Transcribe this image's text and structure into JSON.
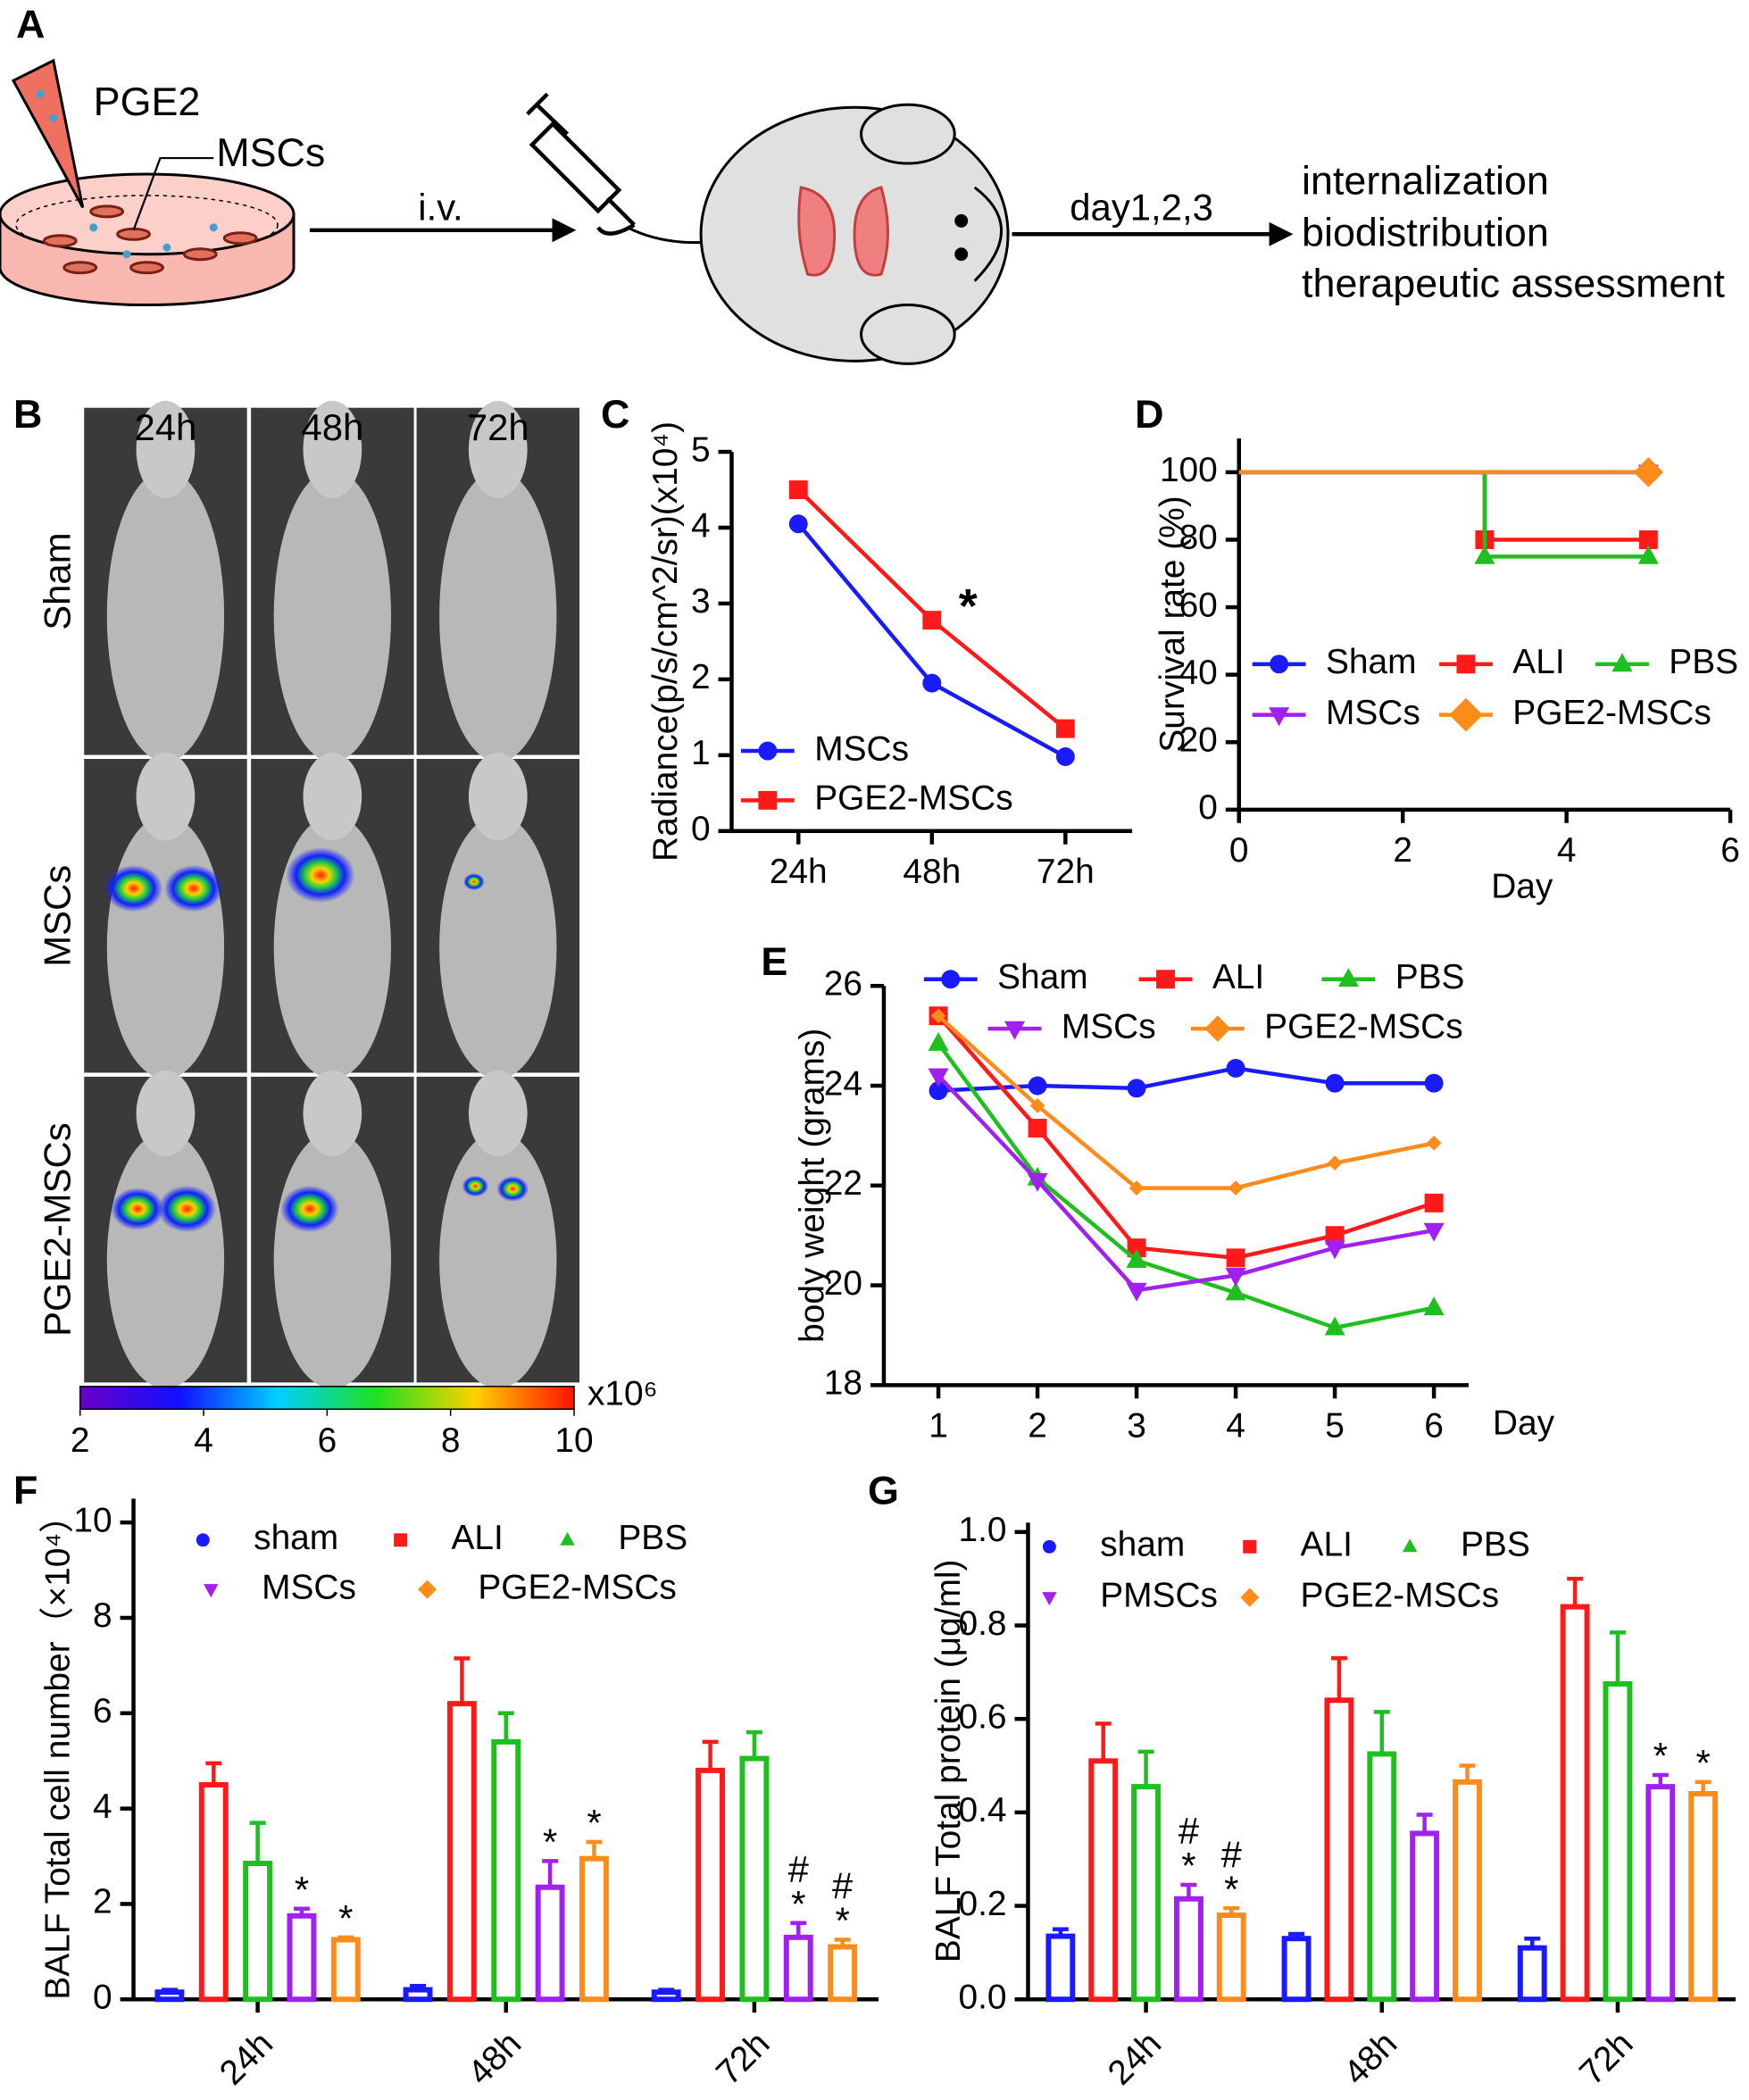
{
  "panel_a": {
    "label": "A",
    "pipette_label": "PGE2",
    "cells_label": "MSCs",
    "route": "i.v.",
    "timing": "day1,2,3",
    "outcomes": [
      "internalization",
      "biodistribution",
      "therapeutic assessment"
    ]
  },
  "panel_b": {
    "label": "B",
    "timepoints": [
      "24h",
      "48h",
      "72h"
    ],
    "groups": [
      "Sham",
      "MSCs",
      "PGE2-MSCs"
    ],
    "colorbar": {
      "lim": [
        2,
        10
      ],
      "ticks": [
        2,
        4,
        6,
        8,
        10
      ],
      "unit": "x10⁶"
    }
  },
  "chart_data": [
    {
      "type": "line",
      "panel": "C",
      "ylabel": "Radiance(p/s/cm^2/sr)(x10⁴)",
      "categories": [
        "24h",
        "48h",
        "72h"
      ],
      "series": [
        {
          "name": "MSCs",
          "color": "#1a1aff",
          "marker": "circle",
          "values": [
            4.05,
            1.95,
            0.98
          ]
        },
        {
          "name": "PGE2-MSCs",
          "color": "#ff1a1a",
          "marker": "square",
          "values": [
            4.5,
            2.78,
            1.35
          ]
        }
      ],
      "ylim": [
        0,
        5
      ],
      "yticks": [
        0,
        1,
        2,
        3,
        4,
        5
      ],
      "annotation": "*",
      "legend": "lower left"
    },
    {
      "type": "step",
      "panel": "D",
      "xlabel": "Day",
      "ylabel": "Survival rate (%)",
      "x": [
        0,
        3,
        5
      ],
      "series": [
        {
          "name": "Sham",
          "color": "#1a1aff",
          "marker": "circle",
          "values": [
            100,
            100,
            100
          ]
        },
        {
          "name": "ALI",
          "color": "#ff1a1a",
          "marker": "square",
          "values": [
            100,
            80,
            80
          ]
        },
        {
          "name": "PBS",
          "color": "#1fbf1f",
          "marker": "triangle",
          "values": [
            100,
            75,
            75
          ]
        },
        {
          "name": "MSCs",
          "color": "#a020f0",
          "marker": "triangle-down",
          "values": [
            100,
            100,
            100
          ]
        },
        {
          "name": "PGE2-MSCs",
          "color": "#ff8c1a",
          "marker": "diamond",
          "values": [
            100,
            100,
            100
          ]
        }
      ],
      "xlim": [
        0,
        6
      ],
      "xticks": [
        0,
        2,
        4,
        6
      ],
      "ylim": [
        0,
        110
      ],
      "yticks": [
        0,
        20,
        40,
        60,
        80,
        100
      ],
      "legend": "lower left"
    },
    {
      "type": "line",
      "panel": "E",
      "xlabel": "Day",
      "ylabel": "body weight (grams)",
      "x": [
        1,
        2,
        3,
        4,
        5,
        6
      ],
      "series": [
        {
          "name": "Sham",
          "color": "#1a1aff",
          "marker": "circle",
          "values": [
            23.9,
            24.0,
            23.95,
            24.35,
            24.05,
            24.05
          ]
        },
        {
          "name": "ALI",
          "color": "#ff1a1a",
          "marker": "square",
          "values": [
            25.4,
            23.15,
            20.75,
            20.55,
            21.0,
            21.65
          ]
        },
        {
          "name": "PBS",
          "color": "#1fbf1f",
          "marker": "triangle",
          "values": [
            24.85,
            22.15,
            20.5,
            19.85,
            19.15,
            19.55
          ]
        },
        {
          "name": "MSCs",
          "color": "#a020f0",
          "marker": "triangle-down",
          "values": [
            24.2,
            22.1,
            19.9,
            20.2,
            20.75,
            21.1
          ]
        },
        {
          "name": "PGE2-MSCs",
          "color": "#ff8c1a",
          "marker": "diamond",
          "values": [
            25.4,
            23.6,
            21.95,
            21.95,
            22.45,
            22.85
          ]
        }
      ],
      "xlim": [
        0.45,
        6.35
      ],
      "xticks": [
        1,
        2,
        3,
        4,
        5,
        6
      ],
      "ylim": [
        18,
        26
      ],
      "yticks": [
        18,
        20,
        22,
        24,
        26
      ],
      "legend": "top"
    },
    {
      "type": "bar",
      "panel": "F",
      "ylabel": "BALF Total cell number（×10⁴）",
      "categories": [
        "24h",
        "48h",
        "72h"
      ],
      "series": [
        {
          "name": "sham",
          "color": "#1a1aff",
          "marker": "circle",
          "values": [
            0.15,
            0.2,
            0.15
          ],
          "errors": [
            0.05,
            0.08,
            0.05
          ]
        },
        {
          "name": "ALI",
          "color": "#ff1a1a",
          "marker": "square",
          "values": [
            4.5,
            6.2,
            4.8
          ],
          "errors": [
            0.45,
            0.95,
            0.6
          ]
        },
        {
          "name": "PBS",
          "color": "#1fbf1f",
          "marker": "triangle",
          "values": [
            2.85,
            5.4,
            5.05
          ],
          "errors": [
            0.85,
            0.6,
            0.55
          ]
        },
        {
          "name": "MSCs",
          "color": "#a020f0",
          "marker": "triangle-down",
          "values": [
            1.75,
            2.35,
            1.3
          ],
          "errors": [
            0.15,
            0.55,
            0.3
          ],
          "significance": [
            [
              "*"
            ],
            [
              "*"
            ],
            [
              "#",
              "*"
            ]
          ]
        },
        {
          "name": "PGE2-MSCs",
          "color": "#ff8c1a",
          "marker": "diamond",
          "values": [
            1.25,
            2.95,
            1.1
          ],
          "errors": [
            0.05,
            0.35,
            0.15
          ],
          "significance": [
            [
              "*"
            ],
            [
              "*"
            ],
            [
              "#",
              "*"
            ]
          ]
        }
      ],
      "ylim": [
        0,
        10.5
      ],
      "yticks": [
        0,
        2,
        4,
        6,
        8,
        10
      ],
      "legend": "top"
    },
    {
      "type": "bar",
      "panel": "G",
      "ylabel": "BALF Total protein (μg/ml)",
      "categories": [
        "24h",
        "48h",
        "72h"
      ],
      "series": [
        {
          "name": "sham",
          "color": "#1a1aff",
          "marker": "circle",
          "values": [
            0.135,
            0.13,
            0.11
          ],
          "errors": [
            0.015,
            0.01,
            0.02
          ]
        },
        {
          "name": "ALI",
          "color": "#ff1a1a",
          "marker": "square",
          "values": [
            0.51,
            0.64,
            0.84
          ],
          "errors": [
            0.08,
            0.09,
            0.06
          ]
        },
        {
          "name": "PBS",
          "color": "#1fbf1f",
          "marker": "triangle",
          "values": [
            0.455,
            0.525,
            0.675
          ],
          "errors": [
            0.075,
            0.09,
            0.11
          ]
        },
        {
          "name": "PMSCs",
          "color": "#a020f0",
          "marker": "triangle-down",
          "values": [
            0.215,
            0.355,
            0.455
          ],
          "errors": [
            0.03,
            0.04,
            0.025
          ],
          "significance": [
            [
              "#",
              "*"
            ],
            null,
            [
              "*"
            ]
          ]
        },
        {
          "name": "PGE2-MSCs",
          "color": "#ff8c1a",
          "marker": "diamond",
          "values": [
            0.18,
            0.465,
            0.44
          ],
          "errors": [
            0.015,
            0.035,
            0.025
          ],
          "significance": [
            [
              "#",
              "*"
            ],
            null,
            [
              "*"
            ]
          ]
        }
      ],
      "ylim": [
        0,
        1.02
      ],
      "yticks": [
        {
          "value": 0,
          "label": "0.0"
        },
        0.2,
        0.4,
        0.6,
        0.8,
        {
          "value": 1,
          "label": "1.0"
        }
      ],
      "legend": "top"
    }
  ]
}
